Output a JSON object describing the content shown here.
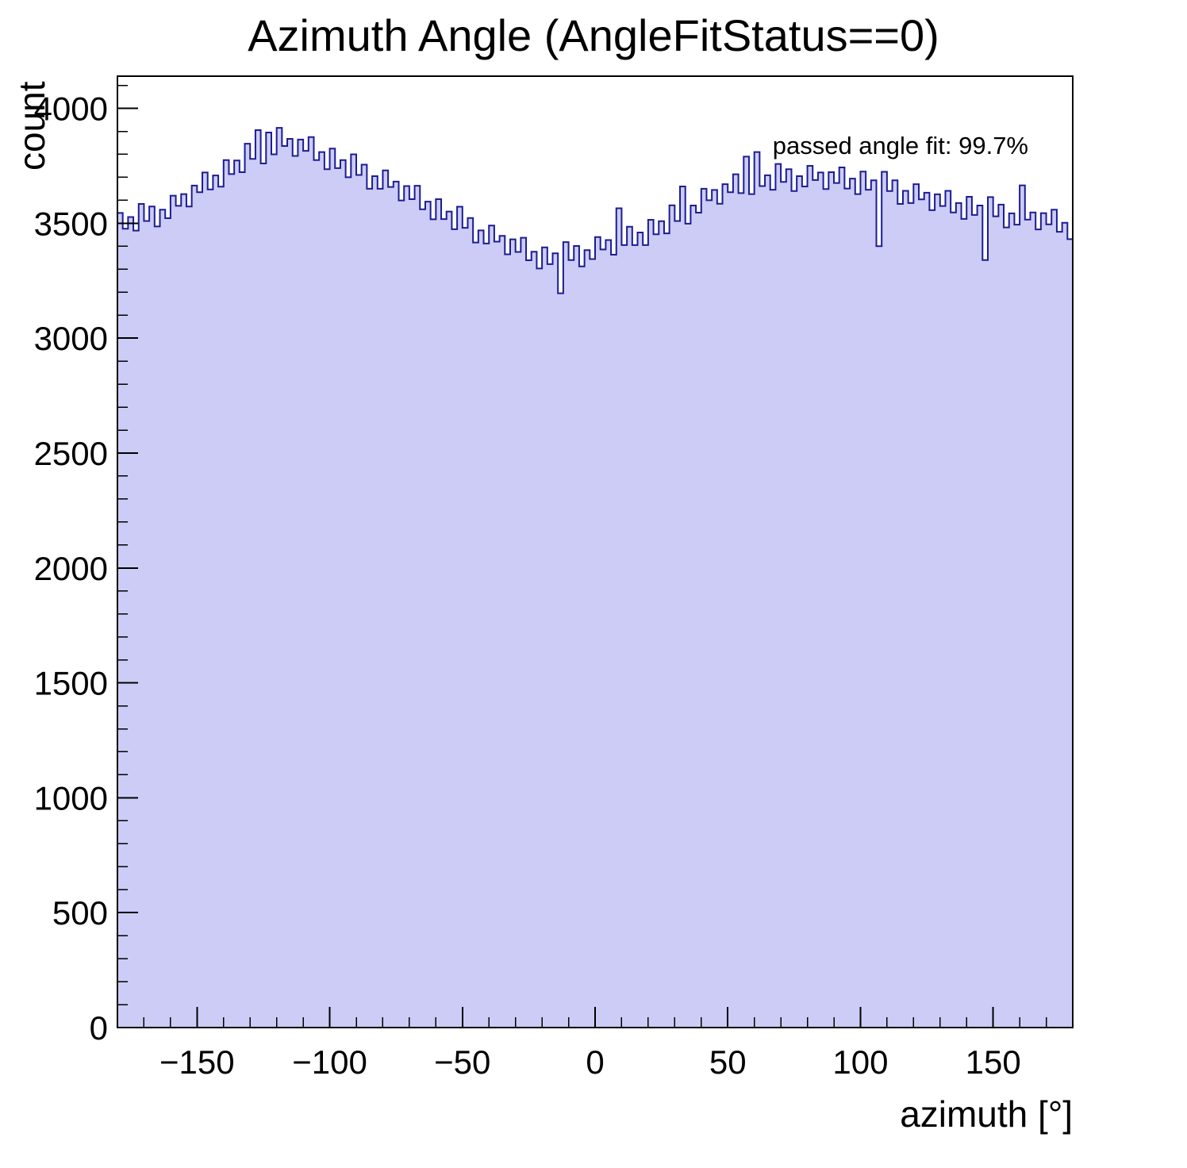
{
  "chart_data": {
    "type": "bar",
    "title": "Azimuth Angle (AngleFitStatus==0)",
    "xlabel": "azimuth [°]",
    "ylabel": "count",
    "annotation": "passed angle fit: 99.7%",
    "xlim": [
      -180,
      180
    ],
    "ylim": [
      0,
      4140
    ],
    "x_bin_start": -180,
    "bin_width": 2,
    "x_ticks": [
      {
        "value": -150,
        "label": "−150"
      },
      {
        "value": -100,
        "label": "−100"
      },
      {
        "value": -50,
        "label": "−50"
      },
      {
        "value": 0,
        "label": "0"
      },
      {
        "value": 50,
        "label": "50"
      },
      {
        "value": 100,
        "label": "100"
      },
      {
        "value": 150,
        "label": "150"
      }
    ],
    "x_minor_step": 10,
    "y_ticks": [
      {
        "value": 0,
        "label": "0"
      },
      {
        "value": 500,
        "label": "500"
      },
      {
        "value": 1000,
        "label": "1000"
      },
      {
        "value": 1500,
        "label": "1500"
      },
      {
        "value": 2000,
        "label": "2000"
      },
      {
        "value": 2500,
        "label": "2500"
      },
      {
        "value": 3000,
        "label": "3000"
      },
      {
        "value": 3500,
        "label": "3500"
      },
      {
        "value": 4000,
        "label": "4000"
      }
    ],
    "y_minor_step": 100,
    "colors": {
      "fill": "#ccccf6",
      "line": "#1c1c94",
      "axis": "#000000"
    },
    "values": [
      3545,
      3476,
      3527,
      3468,
      3584,
      3510,
      3573,
      3486,
      3559,
      3522,
      3620,
      3576,
      3627,
      3573,
      3664,
      3635,
      3721,
      3647,
      3708,
      3659,
      3775,
      3714,
      3773,
      3722,
      3846,
      3780,
      3905,
      3760,
      3895,
      3800,
      3915,
      3836,
      3867,
      3793,
      3864,
      3815,
      3875,
      3775,
      3810,
      3735,
      3825,
      3740,
      3775,
      3700,
      3800,
      3710,
      3755,
      3650,
      3705,
      3650,
      3730,
      3658,
      3681,
      3599,
      3662,
      3605,
      3663,
      3561,
      3594,
      3517,
      3605,
      3518,
      3551,
      3474,
      3572,
      3480,
      3523,
      3416,
      3469,
      3412,
      3490,
      3420,
      3445,
      3365,
      3430,
      3375,
      3437,
      3339,
      3376,
      3303,
      3395,
      3322,
      3369,
      3195,
      3418,
      3340,
      3401,
      3312,
      3383,
      3344,
      3440,
      3386,
      3427,
      3363,
      3565,
      3405,
      3485,
      3405,
      3460,
      3405,
      3515,
      3452,
      3509,
      3456,
      3578,
      3510,
      3660,
      3498,
      3577,
      3546,
      3650,
      3600,
      3645,
      3585,
      3670,
      3635,
      3713,
      3631,
      3790,
      3627,
      3810,
      3662,
      3709,
      3646,
      3758,
      3680,
      3735,
      3640,
      3705,
      3660,
      3750,
      3688,
      3721,
      3649,
      3722,
      3675,
      3743,
      3651,
      3694,
      3627,
      3725,
      3646,
      3687,
      3400,
      3724,
      3640,
      3687,
      3584,
      3641,
      3588,
      3670,
      3604,
      3633,
      3557,
      3626,
      3575,
      3641,
      3547,
      3588,
      3519,
      3615,
      3536,
      3577,
      3340,
      3614,
      3530,
      3581,
      3482,
      3543,
      3494,
      3665,
      3516,
      3547,
      3473,
      3544,
      3495,
      3559,
      3463,
      3502,
      3431
    ]
  }
}
